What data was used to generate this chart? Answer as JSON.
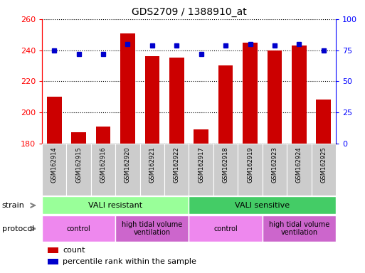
{
  "title": "GDS2709 / 1388910_at",
  "samples": [
    "GSM162914",
    "GSM162915",
    "GSM162916",
    "GSM162920",
    "GSM162921",
    "GSM162922",
    "GSM162917",
    "GSM162918",
    "GSM162919",
    "GSM162923",
    "GSM162924",
    "GSM162925"
  ],
  "counts": [
    210,
    187,
    191,
    251,
    236,
    235,
    189,
    230,
    245,
    240,
    243,
    208
  ],
  "percentiles": [
    75,
    72,
    72,
    80,
    79,
    79,
    72,
    79,
    80,
    79,
    80,
    75
  ],
  "ylim_left": [
    180,
    260
  ],
  "ylim_right": [
    0,
    100
  ],
  "yticks_left": [
    180,
    200,
    220,
    240,
    260
  ],
  "yticks_right": [
    0,
    25,
    50,
    75,
    100
  ],
  "bar_color": "#cc0000",
  "dot_color": "#0000cc",
  "bg_color": "#ffffff",
  "plot_bg": "#ffffff",
  "strain_resistant_label": "VALI resistant",
  "strain_sensitive_label": "VALI sensitive",
  "strain_resistant_color": "#99ff99",
  "strain_sensitive_color": "#44cc66",
  "protocol_control_color": "#ee88ee",
  "protocol_htv_color": "#cc66cc",
  "protocol_control_label": "control",
  "protocol_htv_label": "high tidal volume\nventilation",
  "legend_count": "count",
  "legend_percentile": "percentile rank within the sample",
  "strain_label": "strain",
  "protocol_label": "protocol",
  "xtick_bg": "#cccccc"
}
